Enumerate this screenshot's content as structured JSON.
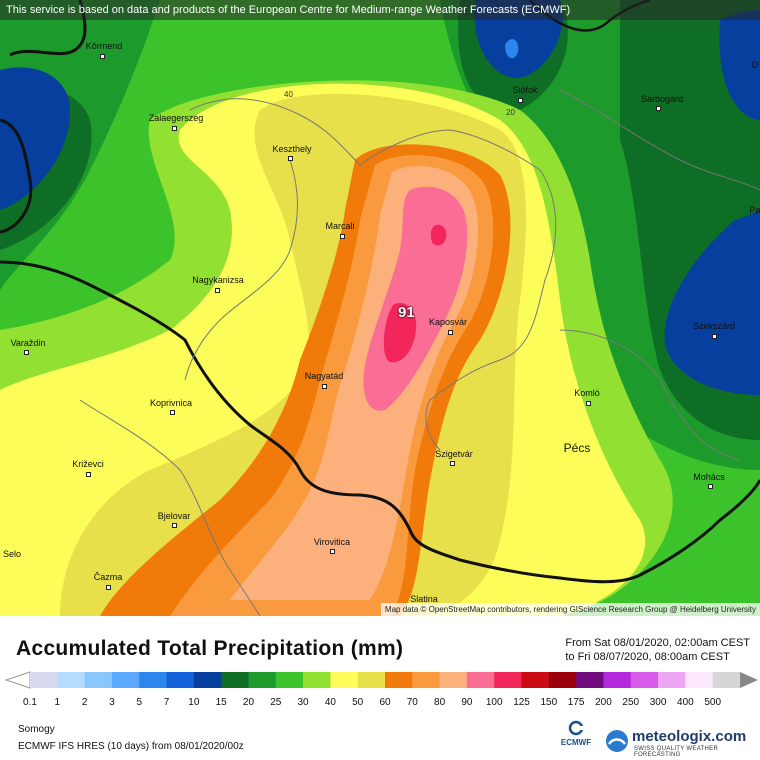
{
  "notice": "This service is based on data and products of the European Centre for Medium-range Weather Forecasts (ECMWF)",
  "attribution": "Map data © OpenStreetMap contributors, rendering GIScience Research Group @ Heidelberg University",
  "title": "Accumulated Total Precipitation (mm)",
  "period": {
    "from": "From Sat 08/01/2020, 02:00am CEST",
    "to": "to Fri 08/07/2020, 08:00am CEST"
  },
  "region": "Somogy",
  "model": "ECMWF IFS HRES (10 days) from 08/01/2020/00z",
  "max_value": "91",
  "contour_labels": [
    "40",
    "20"
  ],
  "ecmwf_label": "ECMWF",
  "brand": "meteologix.com",
  "brand_tagline": "SWISS QUALITY WEATHER FORECASTING",
  "cities": [
    {
      "name": "Körmend"
    },
    {
      "name": "Zalaegerszeg"
    },
    {
      "name": "Keszthely"
    },
    {
      "name": "Siófok"
    },
    {
      "name": "Sárbogárd"
    },
    {
      "name": "Marcali"
    },
    {
      "name": "Nagykanizsa"
    },
    {
      "name": "Kaposvár"
    },
    {
      "name": "Szekszárd"
    },
    {
      "name": "Varaždin"
    },
    {
      "name": "Nagyatád"
    },
    {
      "name": "Koprivnica"
    },
    {
      "name": "Komló"
    },
    {
      "name": "Pécs"
    },
    {
      "name": "Szigetvár"
    },
    {
      "name": "Križevci"
    },
    {
      "name": "Mohács"
    },
    {
      "name": "Bjelovar"
    },
    {
      "name": "Virovitica"
    },
    {
      "name": "Selo"
    },
    {
      "name": "Čazma"
    },
    {
      "name": "Slatina"
    },
    {
      "name": "D"
    },
    {
      "name": "Pa"
    }
  ],
  "legend": {
    "labels": [
      "0.1",
      "1",
      "2",
      "3",
      "5",
      "7",
      "10",
      "15",
      "20",
      "25",
      "30",
      "40",
      "50",
      "60",
      "70",
      "80",
      "90",
      "100",
      "125",
      "150",
      "175",
      "200",
      "250",
      "300",
      "400",
      "500"
    ],
    "colors": [
      "#d9d9f2",
      "#b3dcff",
      "#8cc6ff",
      "#5aa8ff",
      "#2b86f0",
      "#1360d8",
      "#063f9e",
      "#0f6e25",
      "#1d9a2c",
      "#3cc22a",
      "#92e032",
      "#fdfd5a",
      "#e8e04a",
      "#f07a0a",
      "#fa9a3e",
      "#fcb07c",
      "#fa6e96",
      "#f2265a",
      "#cc0a14",
      "#9a0008",
      "#6e0a7e",
      "#b428dc",
      "#d85ae8",
      "#eda6f3",
      "#fbe8fb",
      "#d6d6d6"
    ]
  }
}
